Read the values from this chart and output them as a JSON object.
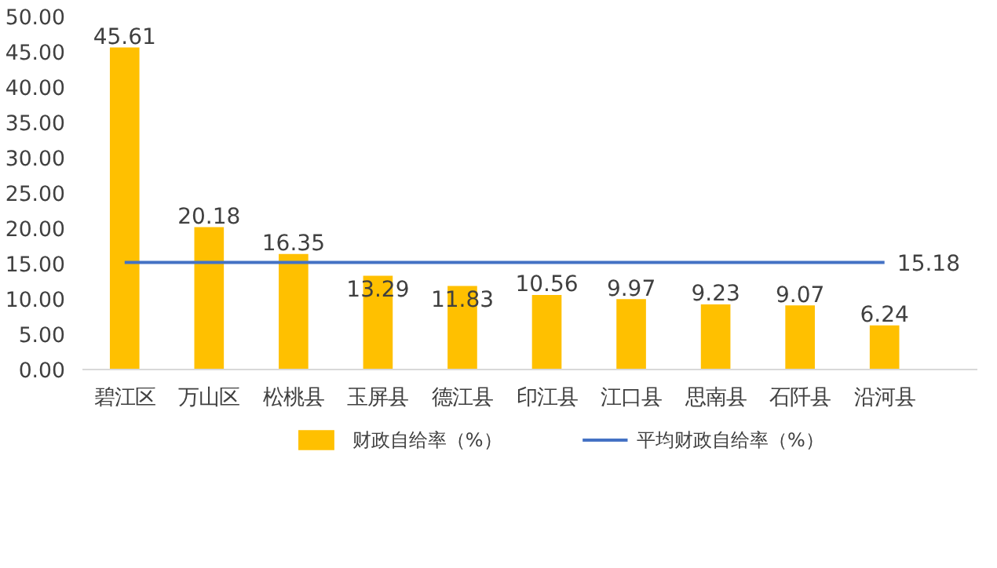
{
  "chart_data": {
    "type": "bar",
    "categories": [
      "碧江区",
      "万山区",
      "松桃县",
      "玉屏县",
      "德江县",
      "印江县",
      "江口县",
      "思南县",
      "石阡县",
      "沿河县"
    ],
    "series": [
      {
        "name": "财政自给率（%）",
        "color": "#ffc000",
        "values": [
          45.61,
          20.18,
          16.35,
          13.29,
          11.83,
          10.56,
          9.97,
          9.23,
          9.07,
          6.24
        ],
        "value_labels": [
          "45.61",
          "20.18",
          "16.35",
          "13.29",
          "11.83",
          "10.56",
          "9.97",
          "9.23",
          "9.07",
          "6.24"
        ]
      },
      {
        "name": "平均财政自给率（%）",
        "type": "line",
        "color": "#4472c4",
        "values": [
          15.18,
          15.18,
          15.18,
          15.18,
          15.18,
          15.18,
          15.18,
          15.18,
          15.18,
          15.18
        ],
        "value_labels": [
          null,
          null,
          null,
          null,
          null,
          null,
          null,
          null,
          null,
          "15.18"
        ]
      }
    ],
    "ylim": [
      0,
      50
    ],
    "yticks": [
      {
        "value": 0,
        "label": "0.00"
      },
      {
        "value": 5,
        "label": "5.00"
      },
      {
        "value": 10,
        "label": "10.00"
      },
      {
        "value": 15,
        "label": "15.00"
      },
      {
        "value": 20,
        "label": "20.00"
      },
      {
        "value": 25,
        "label": "25.00"
      },
      {
        "value": 30,
        "label": "30.00"
      },
      {
        "value": 35,
        "label": "35.00"
      },
      {
        "value": 40,
        "label": "40.00"
      },
      {
        "value": 45,
        "label": "45.00"
      },
      {
        "value": 50,
        "label": "50.00"
      }
    ],
    "grid": false,
    "legend": "bottom"
  }
}
